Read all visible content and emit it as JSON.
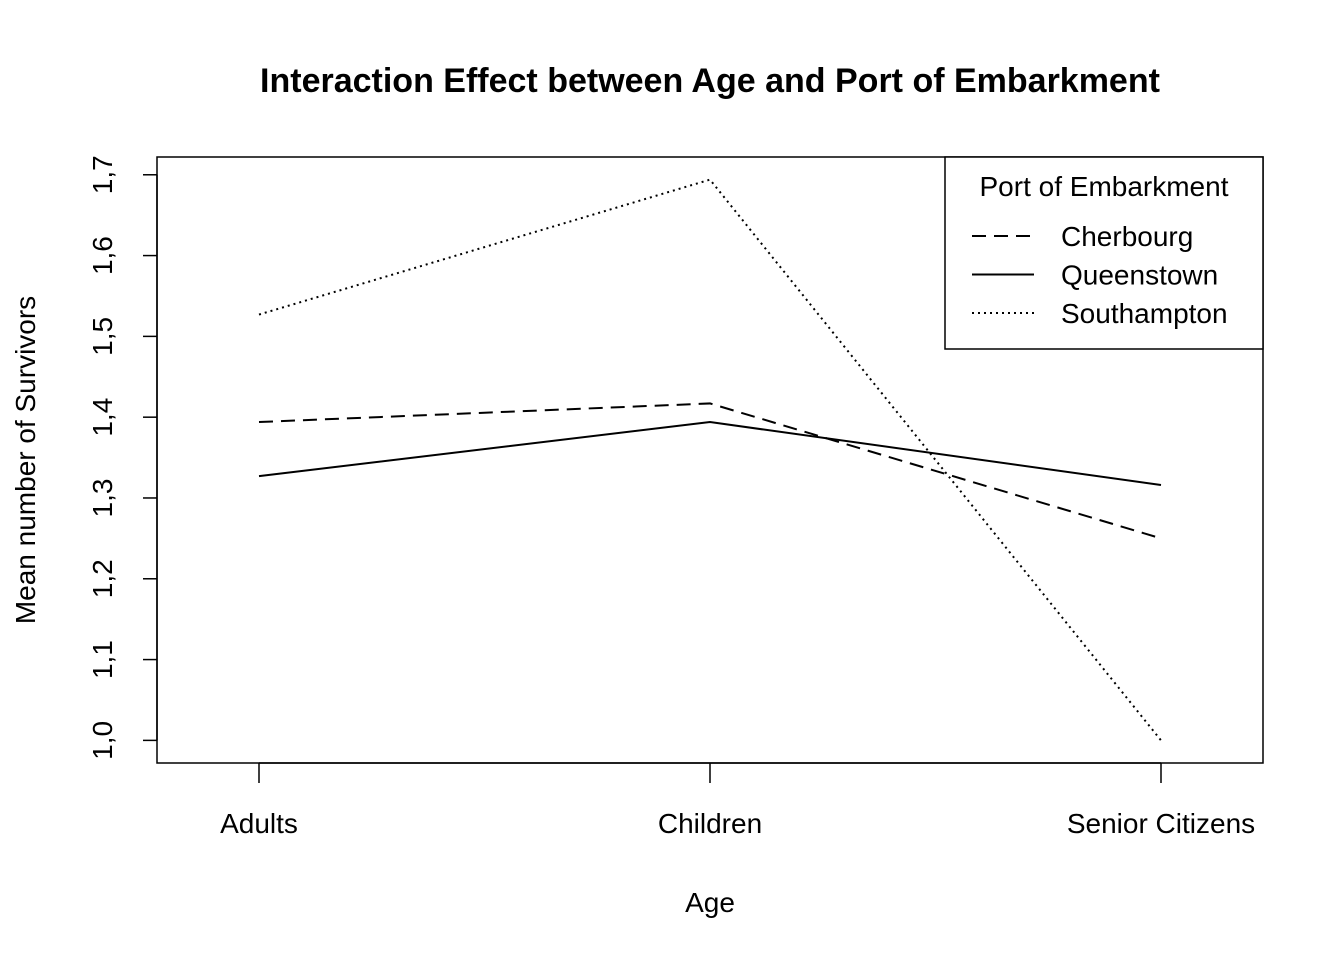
{
  "chart_data": {
    "type": "line",
    "title": "Interaction Effect between Age and Port of Embarkment",
    "xlabel": "Age",
    "ylabel": "Mean number of Survivors",
    "categories": [
      "Adults",
      "Children",
      "Senior Citizens"
    ],
    "ylim": [
      0.972,
      1.722
    ],
    "yticks": [
      {
        "value": 1.0,
        "label": "1,0"
      },
      {
        "value": 1.1,
        "label": "1,1"
      },
      {
        "value": 1.2,
        "label": "1,2"
      },
      {
        "value": 1.3,
        "label": "1,3"
      },
      {
        "value": 1.4,
        "label": "1,4"
      },
      {
        "value": 1.5,
        "label": "1,5"
      },
      {
        "value": 1.6,
        "label": "1,6"
      },
      {
        "value": 1.7,
        "label": "1,7"
      }
    ],
    "grid": false,
    "legend": {
      "title": "Port of Embarkment",
      "placement": "top-right"
    },
    "series": [
      {
        "name": "Cherbourg",
        "style": "dashed",
        "values": [
          1.394,
          1.417,
          1.25
        ]
      },
      {
        "name": "Queenstown",
        "style": "solid",
        "values": [
          1.327,
          1.394,
          1.316
        ]
      },
      {
        "name": "Southampton",
        "style": "dotted",
        "values": [
          1.527,
          1.694,
          1.0
        ]
      }
    ],
    "line_color": "#000000"
  }
}
